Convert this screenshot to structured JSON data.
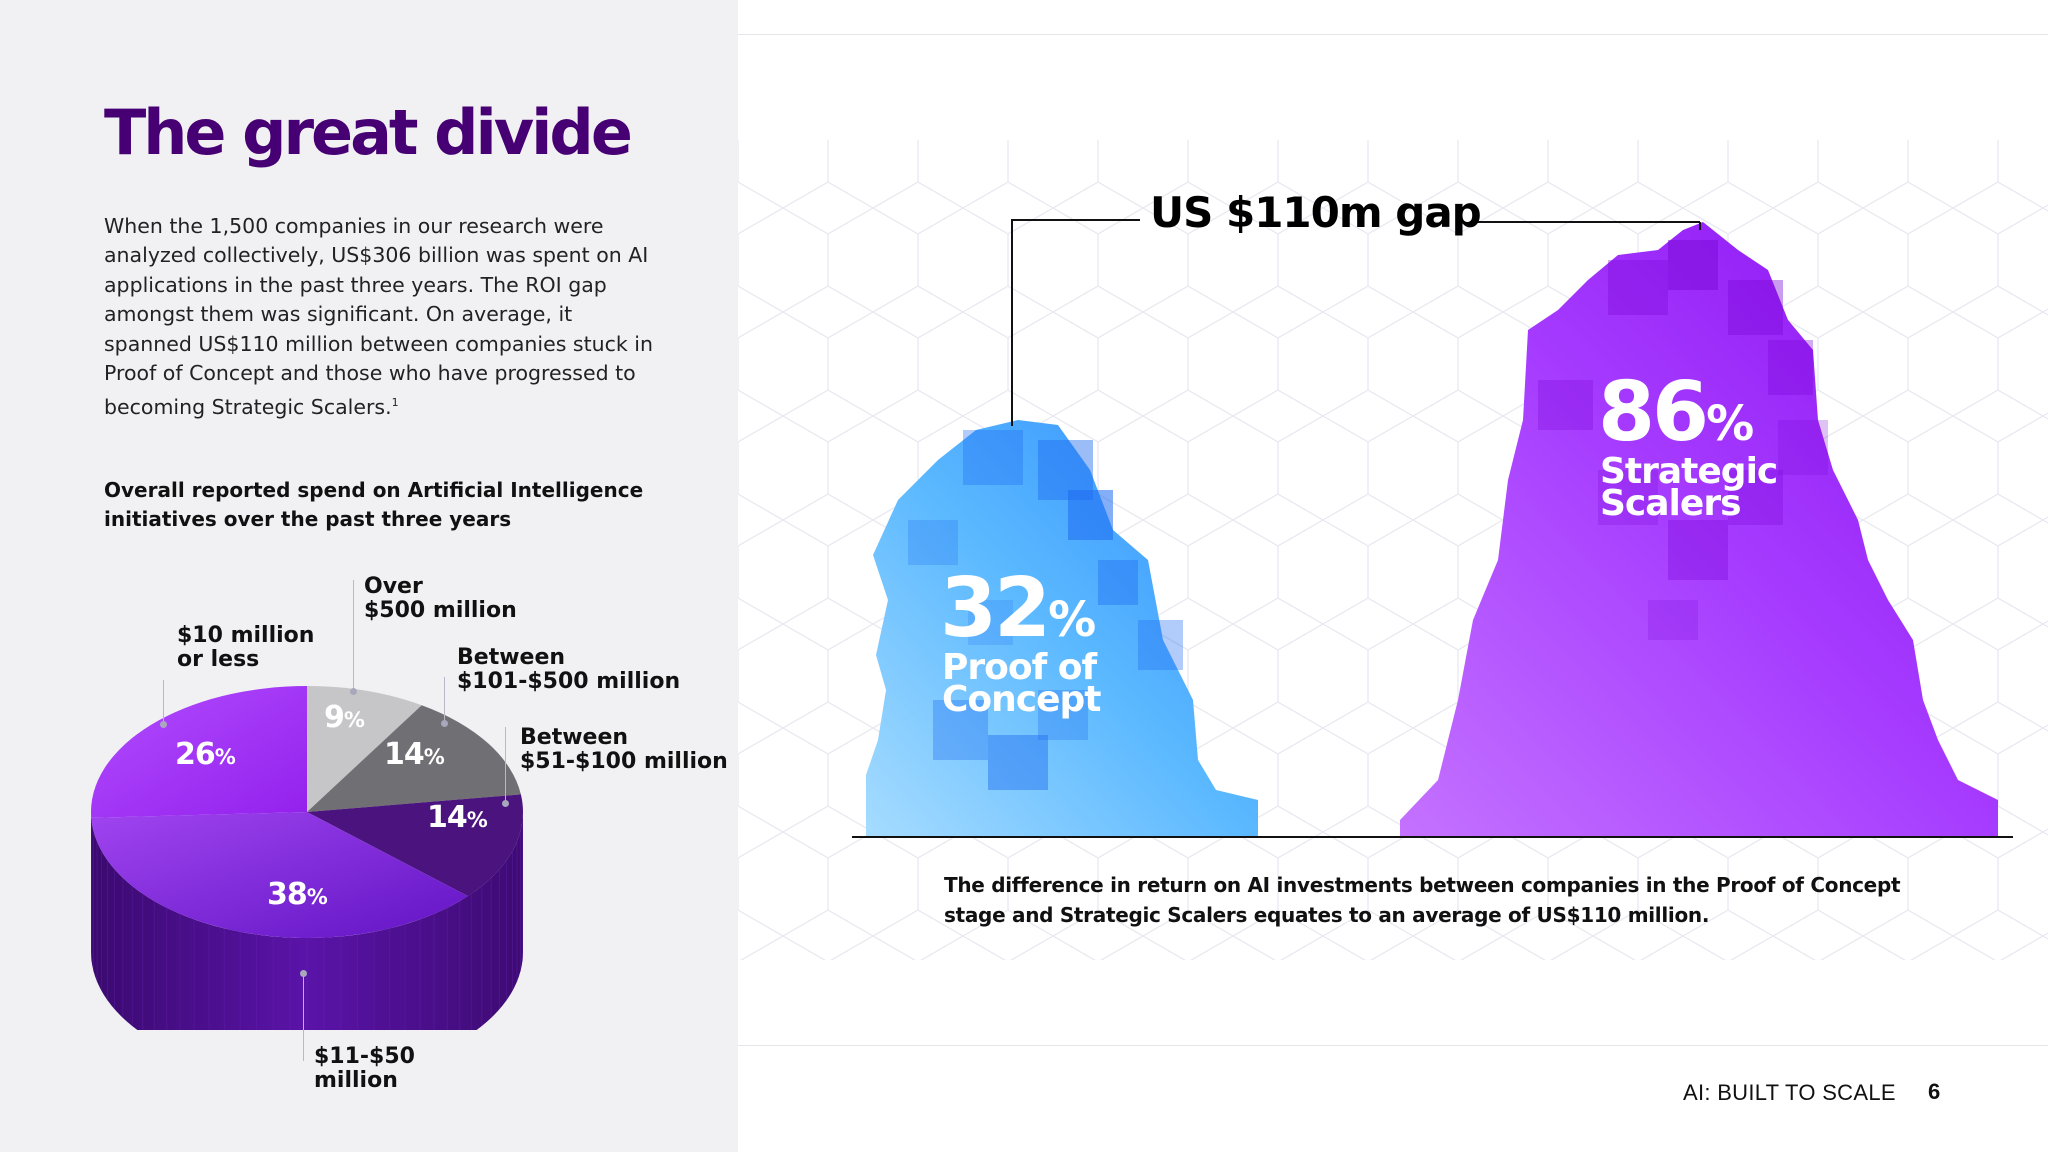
{
  "title": "The great divide",
  "intro": "When the 1,500 companies in our research were analyzed collectively, US$306 billion was spent on AI applications in the past three years. The ROI gap amongst them was significant. On average, it spanned US$110 million between companies stuck in Proof of Concept and those who have progressed to becoming Strategic Scalers.",
  "intro_footnote": "1",
  "pie_heading": "Overall reported spend on Artificial Intelligence initiatives over the past three years",
  "pie_percent_symbol": "%",
  "colors": {
    "title_purple": "#460073",
    "slice_10m_or_less": "#a32ff2",
    "slice_over_500m": "#c6c6c9",
    "slice_101_500m": "#6f6f74",
    "slice_51_100m": "#4a137e",
    "slice_11_50m": "#7a1fd1",
    "proof_of_concept_blue": "#4fb2ff",
    "strategic_scalers_purple": "#a100ff"
  },
  "chart_data": [
    {
      "type": "pie",
      "title": "Overall reported spend on Artificial Intelligence initiatives over the past three years",
      "slices": [
        {
          "label": "$10 million or less",
          "value": 26
        },
        {
          "label": "Over $500 million",
          "value": 9
        },
        {
          "label": "Between $101-$500 million",
          "value": 14
        },
        {
          "label": "Between $51-$100 million",
          "value": 14
        },
        {
          "label": "$11-$50 million",
          "value": 38
        }
      ],
      "unit": "%"
    },
    {
      "type": "area",
      "title": "US $110m gap",
      "categories": [
        "Proof of Concept",
        "Strategic Scalers"
      ],
      "values": [
        32,
        86
      ],
      "unit": "%"
    }
  ],
  "pie_labels": {
    "ten_or_less": "$10 million\nor less",
    "over_500": "Over\n$500 million",
    "between_101_500": "Between\n$101-$500 million",
    "between_51_100": "Between\n$51-$100 million",
    "eleven_50": "$11-$50\nmillion"
  },
  "gap_label": "US $110m gap",
  "poc": {
    "value": "32",
    "label": "Proof of\nConcept"
  },
  "scalers": {
    "value": "86",
    "label": "Strategic\nScalers"
  },
  "caption": "The difference in return on AI investments between companies in the Proof of Concept stage and Strategic Scalers equates to an average of US$110 million.",
  "footer": {
    "doc_title": "AI: BUILT TO SCALE",
    "page_number": "6"
  }
}
